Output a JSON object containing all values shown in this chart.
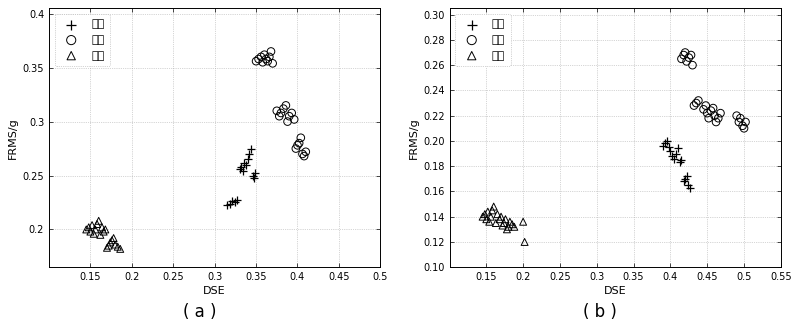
{
  "fig_width": 8.0,
  "fig_height": 3.24,
  "subplot_a": {
    "xlabel": "DSE",
    "ylabel": "FRMS/g",
    "xlim": [
      0.1,
      0.5
    ],
    "ylim": [
      0.165,
      0.405
    ],
    "xticks": [
      0.15,
      0.2,
      0.25,
      0.3,
      0.35,
      0.4,
      0.45,
      0.5
    ],
    "yticks": [
      0.2,
      0.25,
      0.3,
      0.35,
      0.4
    ],
    "caption": "( a )",
    "legend_labels": [
      "裂纹",
      "崩溃",
      "正常"
    ],
    "crack_x": [
      0.315,
      0.318,
      0.321,
      0.324,
      0.327,
      0.33,
      0.332,
      0.334,
      0.336,
      0.338,
      0.34,
      0.342,
      0.344,
      0.346,
      0.347,
      0.349
    ],
    "crack_y": [
      0.223,
      0.224,
      0.226,
      0.225,
      0.227,
      0.256,
      0.258,
      0.254,
      0.262,
      0.26,
      0.265,
      0.27,
      0.275,
      0.25,
      0.248,
      0.252
    ],
    "collapse_x": [
      0.35,
      0.353,
      0.356,
      0.358,
      0.36,
      0.362,
      0.364,
      0.366,
      0.368,
      0.37,
      0.375,
      0.378,
      0.38,
      0.383,
      0.386,
      0.388,
      0.39,
      0.393,
      0.396,
      0.398,
      0.4,
      0.402,
      0.404,
      0.406,
      0.408,
      0.41
    ],
    "collapse_y": [
      0.356,
      0.358,
      0.36,
      0.355,
      0.362,
      0.358,
      0.356,
      0.36,
      0.365,
      0.354,
      0.31,
      0.305,
      0.308,
      0.312,
      0.315,
      0.3,
      0.305,
      0.308,
      0.302,
      0.275,
      0.278,
      0.28,
      0.285,
      0.27,
      0.268,
      0.272
    ],
    "normal_x": [
      0.145,
      0.148,
      0.15,
      0.152,
      0.154,
      0.156,
      0.158,
      0.16,
      0.162,
      0.164,
      0.166,
      0.168,
      0.17,
      0.172,
      0.174,
      0.176,
      0.178,
      0.18,
      0.183,
      0.186
    ],
    "normal_y": [
      0.2,
      0.202,
      0.198,
      0.204,
      0.196,
      0.2,
      0.205,
      0.208,
      0.195,
      0.202,
      0.198,
      0.2,
      0.183,
      0.185,
      0.188,
      0.19,
      0.192,
      0.186,
      0.184,
      0.182
    ]
  },
  "subplot_b": {
    "xlabel": "DSE",
    "ylabel": "FRMS/g",
    "xlim": [
      0.1,
      0.55
    ],
    "ylim": [
      0.1,
      0.305
    ],
    "xticks": [
      0.15,
      0.2,
      0.25,
      0.3,
      0.35,
      0.4,
      0.45,
      0.5,
      0.55
    ],
    "yticks": [
      0.1,
      0.12,
      0.14,
      0.16,
      0.18,
      0.2,
      0.22,
      0.24,
      0.26,
      0.28,
      0.3
    ],
    "caption": "( b )",
    "legend_labels": [
      "裂纹",
      "崩溃",
      "正常"
    ],
    "crack_x": [
      0.39,
      0.393,
      0.395,
      0.398,
      0.4,
      0.402,
      0.405,
      0.408,
      0.41,
      0.413,
      0.415,
      0.418,
      0.42,
      0.422,
      0.424,
      0.426
    ],
    "crack_y": [
      0.196,
      0.198,
      0.2,
      0.195,
      0.192,
      0.188,
      0.186,
      0.19,
      0.194,
      0.183,
      0.185,
      0.168,
      0.17,
      0.172,
      0.165,
      0.163
    ],
    "collapse_x": [
      0.415,
      0.418,
      0.42,
      0.422,
      0.425,
      0.428,
      0.43,
      0.432,
      0.435,
      0.438,
      0.445,
      0.448,
      0.45,
      0.452,
      0.455,
      0.458,
      0.46,
      0.462,
      0.465,
      0.468,
      0.49,
      0.493,
      0.495,
      0.498,
      0.5,
      0.502
    ],
    "collapse_y": [
      0.265,
      0.268,
      0.27,
      0.263,
      0.266,
      0.268,
      0.26,
      0.228,
      0.23,
      0.232,
      0.225,
      0.228,
      0.222,
      0.218,
      0.224,
      0.226,
      0.22,
      0.215,
      0.218,
      0.222,
      0.22,
      0.215,
      0.218,
      0.212,
      0.21,
      0.215
    ],
    "normal_x": [
      0.145,
      0.148,
      0.15,
      0.152,
      0.154,
      0.156,
      0.158,
      0.16,
      0.163,
      0.165,
      0.168,
      0.17,
      0.172,
      0.174,
      0.176,
      0.178,
      0.18,
      0.182,
      0.185,
      0.188,
      0.2,
      0.202
    ],
    "normal_y": [
      0.14,
      0.142,
      0.138,
      0.144,
      0.136,
      0.14,
      0.145,
      0.148,
      0.135,
      0.142,
      0.138,
      0.14,
      0.133,
      0.135,
      0.138,
      0.13,
      0.132,
      0.136,
      0.134,
      0.132,
      0.136,
      0.12
    ]
  },
  "marker_size_plus": 40,
  "marker_size_circle": 30,
  "marker_size_triangle": 25,
  "line_color": "black",
  "bg_color": "white",
  "font_size": 8,
  "caption_font_size": 12,
  "tick_font_size": 7
}
